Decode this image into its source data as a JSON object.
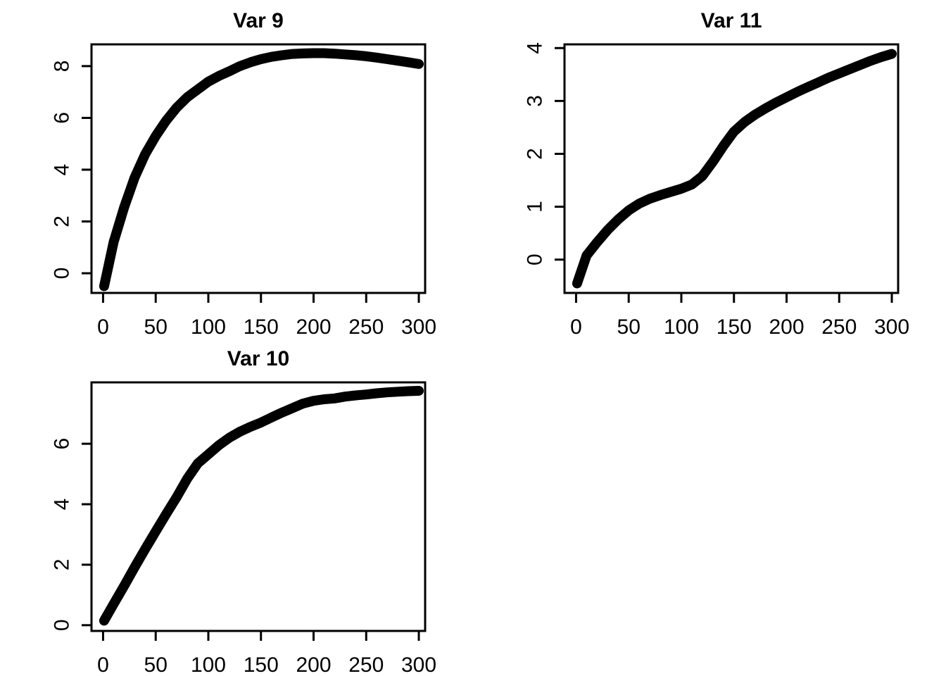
{
  "figure": {
    "background_color": "#ffffff",
    "ink_color": "#000000",
    "layout": "2x2 grid of base-R style plots, bottom-right quadrant empty",
    "empty_quadrant": "bottom-right"
  },
  "chart_data": [
    {
      "type": "line",
      "title": "Var 9",
      "panel": "top-left",
      "xlabel": "",
      "ylabel": "",
      "x_ticks": [
        0,
        50,
        100,
        150,
        200,
        250,
        300
      ],
      "y_ticks": [
        0,
        2,
        4,
        6,
        8
      ],
      "xlim": [
        -11,
        306
      ],
      "ylim": [
        -0.76,
        8.84
      ],
      "grid": "off",
      "legend": "none",
      "line_color": "#000000",
      "line_style": "thick band of densely plotted filled points",
      "x": [
        1,
        10,
        20,
        30,
        40,
        50,
        60,
        70,
        80,
        90,
        100,
        110,
        120,
        130,
        140,
        150,
        160,
        170,
        180,
        190,
        200,
        210,
        220,
        230,
        240,
        250,
        260,
        270,
        280,
        290,
        300
      ],
      "y": [
        -0.5,
        1.2,
        2.55,
        3.7,
        4.6,
        5.3,
        5.9,
        6.4,
        6.8,
        7.1,
        7.4,
        7.62,
        7.8,
        8.0,
        8.15,
        8.27,
        8.36,
        8.42,
        8.47,
        8.49,
        8.5,
        8.5,
        8.48,
        8.45,
        8.42,
        8.38,
        8.33,
        8.27,
        8.21,
        8.15,
        8.08
      ]
    },
    {
      "type": "line",
      "title": "Var 11",
      "panel": "top-right",
      "xlabel": "",
      "ylabel": "",
      "x_ticks": [
        0,
        50,
        100,
        150,
        200,
        250,
        300
      ],
      "y_ticks": [
        0,
        1,
        2,
        3,
        4
      ],
      "xlim": [
        -11,
        306
      ],
      "ylim": [
        -0.63,
        4.07
      ],
      "grid": "off",
      "legend": "none",
      "line_color": "#000000",
      "line_style": "thick band of densely plotted filled points",
      "x": [
        1,
        10,
        20,
        30,
        40,
        50,
        60,
        70,
        80,
        90,
        100,
        110,
        120,
        130,
        140,
        150,
        160,
        170,
        180,
        190,
        200,
        210,
        220,
        230,
        240,
        250,
        260,
        270,
        280,
        290,
        300
      ],
      "y": [
        -0.45,
        0.08,
        0.33,
        0.56,
        0.76,
        0.93,
        1.06,
        1.15,
        1.22,
        1.28,
        1.34,
        1.42,
        1.58,
        1.85,
        2.15,
        2.42,
        2.6,
        2.74,
        2.86,
        2.97,
        3.07,
        3.17,
        3.26,
        3.35,
        3.44,
        3.52,
        3.6,
        3.68,
        3.76,
        3.83,
        3.89
      ]
    },
    {
      "type": "line",
      "title": "Var 10",
      "panel": "bottom-left",
      "xlabel": "",
      "ylabel": "",
      "x_ticks": [
        0,
        50,
        100,
        150,
        200,
        250,
        300
      ],
      "y_ticks": [
        0,
        2,
        4,
        6
      ],
      "xlim": [
        -11,
        306
      ],
      "ylim": [
        -0.19,
        8.03
      ],
      "grid": "off",
      "legend": "none",
      "line_color": "#000000",
      "line_style": "thick band of densely plotted filled points",
      "x": [
        1,
        10,
        20,
        30,
        40,
        50,
        60,
        70,
        80,
        90,
        100,
        110,
        120,
        130,
        140,
        150,
        160,
        170,
        180,
        190,
        200,
        210,
        220,
        230,
        240,
        250,
        260,
        270,
        280,
        290,
        300
      ],
      "y": [
        0.15,
        0.7,
        1.3,
        1.92,
        2.52,
        3.1,
        3.68,
        4.24,
        4.85,
        5.35,
        5.65,
        5.95,
        6.2,
        6.4,
        6.56,
        6.7,
        6.87,
        7.03,
        7.18,
        7.33,
        7.42,
        7.47,
        7.5,
        7.56,
        7.6,
        7.63,
        7.67,
        7.7,
        7.72,
        7.74,
        7.75
      ]
    }
  ]
}
